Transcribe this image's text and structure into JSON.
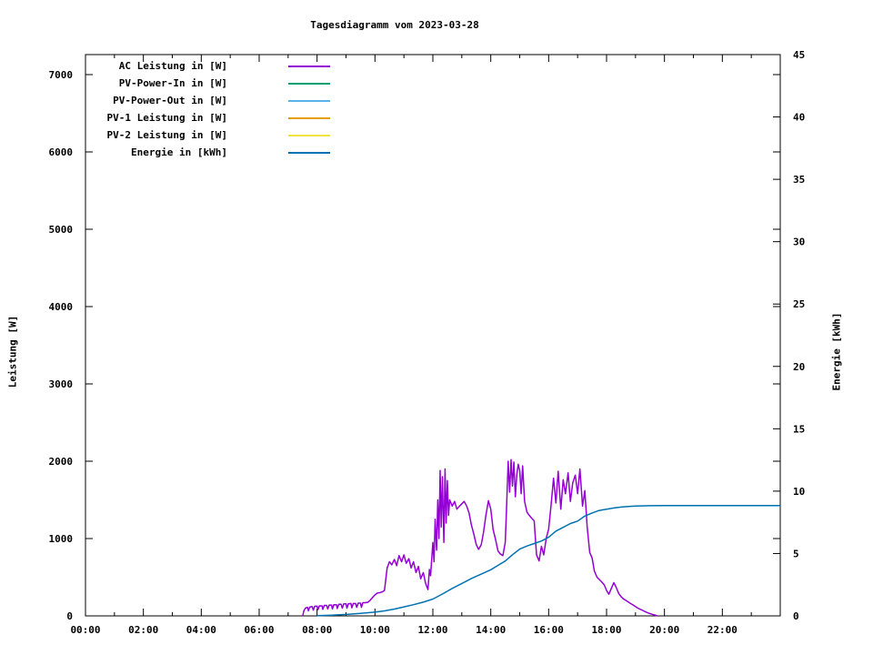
{
  "title": "Tagesdiagramm vom 2023-03-28",
  "chart_data": {
    "type": "line",
    "title": "Tagesdiagramm vom 2023-03-28",
    "grid": false,
    "legend_position": "top-left-inside",
    "x_axis": {
      "label": "",
      "unit": "time",
      "range_hours": [
        0,
        24
      ],
      "major_tick_hours": 2,
      "minor_tick_hours": 1,
      "tick_labels": [
        "00:00",
        "02:00",
        "04:00",
        "06:00",
        "08:00",
        "10:00",
        "12:00",
        "14:00",
        "16:00",
        "18:00",
        "20:00",
        "22:00"
      ]
    },
    "y_axis": {
      "label": "Leistung [W]",
      "range": [
        0,
        7260
      ],
      "tick_step": 1000,
      "tick_labels": [
        "0",
        "1000",
        "2000",
        "3000",
        "4000",
        "5000",
        "6000",
        "7000"
      ]
    },
    "y2_axis": {
      "label": "Energie [kWh]",
      "range": [
        0,
        45
      ],
      "tick_step": 5,
      "tick_labels": [
        "0",
        "5",
        "10",
        "15",
        "20",
        "25",
        "30",
        "35",
        "40",
        "45"
      ]
    },
    "legend": [
      {
        "label": "AC Leistung in [W]",
        "color": "#9400D3"
      },
      {
        "label": "PV-Power-In in [W]",
        "color": "#009E73"
      },
      {
        "label": "PV-Power-Out in [W]",
        "color": "#56B4E9"
      },
      {
        "label": "PV-1 Leistung in [W]",
        "color": "#E69F00"
      },
      {
        "label": "PV-2 Leistung in [W]",
        "color": "#F0E442"
      },
      {
        "label": "Energie in [kWh]",
        "color": "#0072B2"
      }
    ],
    "series": [
      {
        "name": "AC Leistung in [W]",
        "color": "#9400D3",
        "axis": "y",
        "visible": true,
        "points": [
          [
            7.5,
            0
          ],
          [
            7.55,
            70
          ],
          [
            7.6,
            100
          ],
          [
            7.67,
            110
          ],
          [
            7.7,
            65
          ],
          [
            7.75,
            115
          ],
          [
            7.83,
            120
          ],
          [
            7.87,
            75
          ],
          [
            7.92,
            125
          ],
          [
            8.0,
            125
          ],
          [
            8.03,
            80
          ],
          [
            8.08,
            130
          ],
          [
            8.17,
            130
          ],
          [
            8.2,
            85
          ],
          [
            8.25,
            135
          ],
          [
            8.33,
            135
          ],
          [
            8.37,
            90
          ],
          [
            8.42,
            140
          ],
          [
            8.5,
            140
          ],
          [
            8.53,
            90
          ],
          [
            8.58,
            145
          ],
          [
            8.67,
            145
          ],
          [
            8.7,
            95
          ],
          [
            8.75,
            150
          ],
          [
            8.83,
            150
          ],
          [
            8.87,
            100
          ],
          [
            8.92,
            155
          ],
          [
            9.0,
            155
          ],
          [
            9.03,
            100
          ],
          [
            9.08,
            155
          ],
          [
            9.17,
            160
          ],
          [
            9.2,
            105
          ],
          [
            9.25,
            160
          ],
          [
            9.33,
            160
          ],
          [
            9.37,
            110
          ],
          [
            9.42,
            165
          ],
          [
            9.5,
            165
          ],
          [
            9.53,
            110
          ],
          [
            9.58,
            170
          ],
          [
            9.67,
            170
          ],
          [
            9.75,
            175
          ],
          [
            9.83,
            200
          ],
          [
            9.92,
            240
          ],
          [
            10.0,
            270
          ],
          [
            10.08,
            295
          ],
          [
            10.17,
            300
          ],
          [
            10.25,
            310
          ],
          [
            10.33,
            330
          ],
          [
            10.42,
            620
          ],
          [
            10.5,
            700
          ],
          [
            10.58,
            660
          ],
          [
            10.67,
            730
          ],
          [
            10.75,
            650
          ],
          [
            10.83,
            780
          ],
          [
            10.92,
            700
          ],
          [
            11.0,
            790
          ],
          [
            11.08,
            680
          ],
          [
            11.17,
            740
          ],
          [
            11.25,
            620
          ],
          [
            11.33,
            700
          ],
          [
            11.42,
            560
          ],
          [
            11.5,
            640
          ],
          [
            11.58,
            480
          ],
          [
            11.67,
            560
          ],
          [
            11.75,
            420
          ],
          [
            11.83,
            340
          ],
          [
            11.88,
            600
          ],
          [
            11.92,
            520
          ],
          [
            12.0,
            950
          ],
          [
            12.04,
            700
          ],
          [
            12.08,
            1250
          ],
          [
            12.13,
            850
          ],
          [
            12.17,
            1500
          ],
          [
            12.21,
            1000
          ],
          [
            12.25,
            1880
          ],
          [
            12.29,
            1150
          ],
          [
            12.33,
            1800
          ],
          [
            12.38,
            950
          ],
          [
            12.42,
            1900
          ],
          [
            12.46,
            1200
          ],
          [
            12.5,
            1750
          ],
          [
            12.54,
            1300
          ],
          [
            12.58,
            1500
          ],
          [
            12.67,
            1420
          ],
          [
            12.75,
            1480
          ],
          [
            12.83,
            1380
          ],
          [
            12.92,
            1420
          ],
          [
            13.0,
            1450
          ],
          [
            13.08,
            1480
          ],
          [
            13.17,
            1420
          ],
          [
            13.25,
            1330
          ],
          [
            13.33,
            1180
          ],
          [
            13.42,
            1050
          ],
          [
            13.5,
            920
          ],
          [
            13.58,
            860
          ],
          [
            13.67,
            920
          ],
          [
            13.75,
            1080
          ],
          [
            13.83,
            1300
          ],
          [
            13.92,
            1490
          ],
          [
            14.0,
            1380
          ],
          [
            14.08,
            1120
          ],
          [
            14.17,
            980
          ],
          [
            14.25,
            840
          ],
          [
            14.33,
            800
          ],
          [
            14.42,
            780
          ],
          [
            14.5,
            950
          ],
          [
            14.55,
            1450
          ],
          [
            14.6,
            2000
          ],
          [
            14.65,
            1600
          ],
          [
            14.7,
            2020
          ],
          [
            14.75,
            1680
          ],
          [
            14.8,
            1990
          ],
          [
            14.85,
            1540
          ],
          [
            14.9,
            1830
          ],
          [
            14.95,
            1960
          ],
          [
            15.0,
            1880
          ],
          [
            15.05,
            1580
          ],
          [
            15.1,
            1940
          ],
          [
            15.17,
            1480
          ],
          [
            15.25,
            1340
          ],
          [
            15.33,
            1300
          ],
          [
            15.42,
            1260
          ],
          [
            15.5,
            1230
          ],
          [
            15.58,
            790
          ],
          [
            15.67,
            710
          ],
          [
            15.75,
            900
          ],
          [
            15.83,
            790
          ],
          [
            15.92,
            1010
          ],
          [
            16.0,
            1120
          ],
          [
            16.08,
            1420
          ],
          [
            16.17,
            1780
          ],
          [
            16.25,
            1460
          ],
          [
            16.33,
            1870
          ],
          [
            16.42,
            1380
          ],
          [
            16.5,
            1760
          ],
          [
            16.58,
            1580
          ],
          [
            16.67,
            1850
          ],
          [
            16.75,
            1480
          ],
          [
            16.83,
            1720
          ],
          [
            16.92,
            1820
          ],
          [
            17.0,
            1580
          ],
          [
            17.08,
            1900
          ],
          [
            17.17,
            1420
          ],
          [
            17.25,
            1620
          ],
          [
            17.33,
            1150
          ],
          [
            17.42,
            820
          ],
          [
            17.5,
            750
          ],
          [
            17.58,
            580
          ],
          [
            17.67,
            500
          ],
          [
            17.75,
            470
          ],
          [
            17.83,
            440
          ],
          [
            17.92,
            400
          ],
          [
            18.0,
            330
          ],
          [
            18.08,
            280
          ],
          [
            18.17,
            360
          ],
          [
            18.25,
            430
          ],
          [
            18.33,
            370
          ],
          [
            18.42,
            290
          ],
          [
            18.5,
            250
          ],
          [
            18.58,
            220
          ],
          [
            18.67,
            200
          ],
          [
            18.75,
            180
          ],
          [
            18.83,
            160
          ],
          [
            18.92,
            140
          ],
          [
            19.0,
            120
          ],
          [
            19.08,
            100
          ],
          [
            19.17,
            85
          ],
          [
            19.25,
            70
          ],
          [
            19.33,
            55
          ],
          [
            19.42,
            40
          ],
          [
            19.5,
            30
          ],
          [
            19.58,
            20
          ],
          [
            19.67,
            10
          ],
          [
            19.75,
            0
          ]
        ]
      },
      {
        "name": "PV-Power-In in [W]",
        "color": "#009E73",
        "axis": "y",
        "visible": false,
        "points": []
      },
      {
        "name": "PV-Power-Out in [W]",
        "color": "#56B4E9",
        "axis": "y",
        "visible": false,
        "points": []
      },
      {
        "name": "PV-1 Leistung in [W]",
        "color": "#E69F00",
        "axis": "y",
        "visible": false,
        "points": []
      },
      {
        "name": "PV-2 Leistung in [W]",
        "color": "#F0E442",
        "axis": "y",
        "visible": false,
        "points": []
      },
      {
        "name": "Energie in [kWh]",
        "color": "#0072B2",
        "axis": "y2",
        "visible": true,
        "points": [
          [
            8.0,
            0.02
          ],
          [
            8.5,
            0.06
          ],
          [
            9.0,
            0.12
          ],
          [
            9.5,
            0.2
          ],
          [
            10.0,
            0.3
          ],
          [
            10.33,
            0.4
          ],
          [
            10.67,
            0.55
          ],
          [
            11.0,
            0.72
          ],
          [
            11.33,
            0.9
          ],
          [
            11.67,
            1.1
          ],
          [
            12.0,
            1.35
          ],
          [
            12.33,
            1.75
          ],
          [
            12.67,
            2.2
          ],
          [
            13.0,
            2.6
          ],
          [
            13.33,
            3.0
          ],
          [
            13.67,
            3.35
          ],
          [
            14.0,
            3.7
          ],
          [
            14.25,
            4.05
          ],
          [
            14.5,
            4.4
          ],
          [
            14.75,
            4.9
          ],
          [
            15.0,
            5.35
          ],
          [
            15.25,
            5.6
          ],
          [
            15.5,
            5.8
          ],
          [
            15.75,
            6.0
          ],
          [
            16.0,
            6.3
          ],
          [
            16.25,
            6.8
          ],
          [
            16.5,
            7.1
          ],
          [
            16.75,
            7.4
          ],
          [
            17.0,
            7.6
          ],
          [
            17.25,
            8.0
          ],
          [
            17.5,
            8.25
          ],
          [
            17.75,
            8.45
          ],
          [
            18.0,
            8.55
          ],
          [
            18.25,
            8.65
          ],
          [
            18.5,
            8.72
          ],
          [
            18.75,
            8.77
          ],
          [
            19.0,
            8.8
          ],
          [
            19.5,
            8.83
          ],
          [
            20.0,
            8.85
          ],
          [
            21.0,
            8.85
          ],
          [
            22.0,
            8.85
          ],
          [
            23.0,
            8.85
          ],
          [
            24.0,
            8.85
          ]
        ]
      }
    ]
  }
}
